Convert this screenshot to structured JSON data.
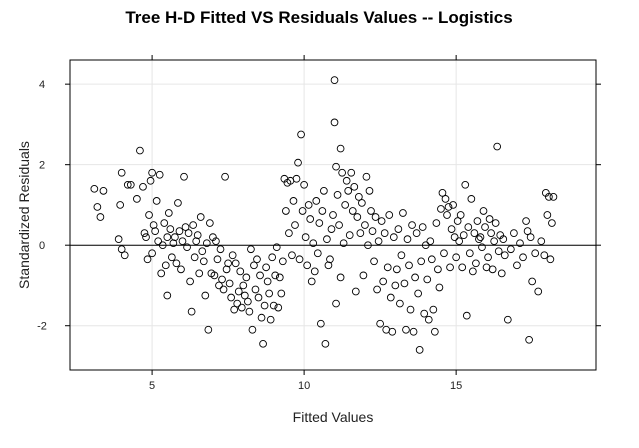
{
  "chart_data": {
    "type": "scatter",
    "title": "Tree H-D Fitted VS Residuals Values -- Logistics",
    "xlabel": "Fitted Values",
    "ylabel": "Standardized Residuals",
    "xlim": [
      2.3,
      19.6
    ],
    "ylim": [
      -3.1,
      4.6
    ],
    "xticks": [
      5,
      10,
      15
    ],
    "xtick_labels": [
      "5",
      "10",
      "15"
    ],
    "yticks": [
      -2,
      0,
      2,
      4
    ],
    "ytick_labels": [
      "-2",
      "0",
      "2",
      "4"
    ],
    "grid": true,
    "reference_line_y": 0,
    "marker": "open-circle",
    "points": [
      [
        3.1,
        1.4
      ],
      [
        3.2,
        0.95
      ],
      [
        3.3,
        0.7
      ],
      [
        3.4,
        1.35
      ],
      [
        3.9,
        0.15
      ],
      [
        4.0,
        -0.1
      ],
      [
        4.1,
        -0.25
      ],
      [
        3.95,
        1.0
      ],
      [
        4.0,
        1.8
      ],
      [
        4.2,
        1.5
      ],
      [
        4.3,
        1.5
      ],
      [
        4.5,
        1.15
      ],
      [
        4.6,
        2.35
      ],
      [
        4.7,
        1.45
      ],
      [
        4.75,
        0.3
      ],
      [
        4.8,
        0.2
      ],
      [
        4.85,
        -0.35
      ],
      [
        4.9,
        0.75
      ],
      [
        4.95,
        1.6
      ],
      [
        5.0,
        1.8
      ],
      [
        5.0,
        -0.2
      ],
      [
        5.05,
        0.5
      ],
      [
        5.1,
        0.35
      ],
      [
        5.15,
        1.1
      ],
      [
        5.2,
        0.1
      ],
      [
        5.25,
        1.75
      ],
      [
        5.3,
        -0.7
      ],
      [
        5.35,
        0.0
      ],
      [
        5.4,
        0.55
      ],
      [
        5.45,
        -0.5
      ],
      [
        5.5,
        0.2
      ],
      [
        5.5,
        -1.25
      ],
      [
        5.55,
        0.8
      ],
      [
        5.6,
        0.4
      ],
      [
        5.65,
        -0.3
      ],
      [
        5.7,
        0.05
      ],
      [
        5.75,
        0.2
      ],
      [
        5.8,
        -0.45
      ],
      [
        5.85,
        1.05
      ],
      [
        5.9,
        0.35
      ],
      [
        5.95,
        -0.6
      ],
      [
        6.0,
        0.1
      ],
      [
        6.05,
        1.7
      ],
      [
        6.1,
        0.45
      ],
      [
        6.15,
        -0.05
      ],
      [
        6.2,
        0.3
      ],
      [
        6.25,
        -0.9
      ],
      [
        6.3,
        -1.65
      ],
      [
        6.35,
        0.5
      ],
      [
        6.4,
        -0.3
      ],
      [
        6.45,
        0.1
      ],
      [
        6.5,
        0.25
      ],
      [
        6.55,
        -0.7
      ],
      [
        6.6,
        0.7
      ],
      [
        6.65,
        -0.15
      ],
      [
        6.7,
        -0.4
      ],
      [
        6.75,
        -1.25
      ],
      [
        6.8,
        0.05
      ],
      [
        6.85,
        -2.1
      ],
      [
        6.9,
        0.55
      ],
      [
        6.95,
        -0.7
      ],
      [
        7.0,
        0.2
      ],
      [
        7.05,
        -0.75
      ],
      [
        7.1,
        0.1
      ],
      [
        7.15,
        -0.35
      ],
      [
        7.2,
        -1.0
      ],
      [
        7.25,
        -0.1
      ],
      [
        7.3,
        -0.85
      ],
      [
        7.35,
        -1.1
      ],
      [
        7.4,
        1.7
      ],
      [
        7.45,
        -0.6
      ],
      [
        7.5,
        -0.45
      ],
      [
        7.55,
        -0.95
      ],
      [
        7.6,
        -1.3
      ],
      [
        7.65,
        -0.25
      ],
      [
        7.7,
        -1.6
      ],
      [
        7.75,
        -0.45
      ],
      [
        7.8,
        -1.45
      ],
      [
        7.85,
        -1.15
      ],
      [
        7.9,
        -0.65
      ],
      [
        7.95,
        -1.55
      ],
      [
        8.0,
        -1.0
      ],
      [
        8.05,
        -1.25
      ],
      [
        8.1,
        -0.8
      ],
      [
        8.15,
        -1.4
      ],
      [
        8.2,
        -1.65
      ],
      [
        8.25,
        -0.1
      ],
      [
        8.3,
        -2.1
      ],
      [
        8.35,
        -0.5
      ],
      [
        8.4,
        -1.1
      ],
      [
        8.45,
        -0.35
      ],
      [
        8.5,
        -1.3
      ],
      [
        8.55,
        -0.75
      ],
      [
        8.6,
        -1.8
      ],
      [
        8.65,
        -2.45
      ],
      [
        8.7,
        -1.5
      ],
      [
        8.75,
        -0.55
      ],
      [
        8.8,
        -0.9
      ],
      [
        8.85,
        -1.2
      ],
      [
        8.9,
        -1.85
      ],
      [
        8.95,
        -0.3
      ],
      [
        9.0,
        -1.5
      ],
      [
        9.05,
        -0.75
      ],
      [
        9.1,
        -0.05
      ],
      [
        9.15,
        -1.55
      ],
      [
        9.2,
        -0.8
      ],
      [
        9.25,
        -1.2
      ],
      [
        9.3,
        -0.4
      ],
      [
        9.35,
        1.65
      ],
      [
        9.4,
        0.85
      ],
      [
        9.45,
        1.55
      ],
      [
        9.5,
        0.3
      ],
      [
        9.55,
        1.6
      ],
      [
        9.6,
        -0.25
      ],
      [
        9.65,
        1.1
      ],
      [
        9.7,
        0.5
      ],
      [
        9.75,
        1.65
      ],
      [
        9.8,
        2.05
      ],
      [
        9.85,
        -0.35
      ],
      [
        9.9,
        2.75
      ],
      [
        9.95,
        0.85
      ],
      [
        10.0,
        1.5
      ],
      [
        10.05,
        0.2
      ],
      [
        10.1,
        -0.5
      ],
      [
        10.15,
        1.0
      ],
      [
        10.2,
        0.65
      ],
      [
        10.25,
        -0.9
      ],
      [
        10.3,
        0.05
      ],
      [
        10.35,
        -0.65
      ],
      [
        10.4,
        1.1
      ],
      [
        10.45,
        -0.2
      ],
      [
        10.5,
        0.55
      ],
      [
        10.55,
        -1.95
      ],
      [
        10.6,
        0.85
      ],
      [
        10.65,
        1.35
      ],
      [
        10.7,
        -2.45
      ],
      [
        10.75,
        0.15
      ],
      [
        10.8,
        -0.5
      ],
      [
        10.85,
        -0.35
      ],
      [
        10.9,
        0.4
      ],
      [
        10.95,
        0.75
      ],
      [
        11.0,
        4.1
      ],
      [
        11.0,
        3.05
      ],
      [
        11.05,
        1.95
      ],
      [
        11.05,
        -1.45
      ],
      [
        11.1,
        1.25
      ],
      [
        11.15,
        0.5
      ],
      [
        11.2,
        2.4
      ],
      [
        11.2,
        -0.8
      ],
      [
        11.25,
        1.8
      ],
      [
        11.3,
        0.05
      ],
      [
        11.35,
        1.0
      ],
      [
        11.4,
        1.6
      ],
      [
        11.45,
        1.35
      ],
      [
        11.5,
        0.25
      ],
      [
        11.55,
        1.8
      ],
      [
        11.6,
        0.85
      ],
      [
        11.65,
        1.45
      ],
      [
        11.7,
        -1.15
      ],
      [
        11.75,
        0.7
      ],
      [
        11.8,
        1.2
      ],
      [
        11.85,
        0.3
      ],
      [
        11.9,
        1.05
      ],
      [
        11.95,
        -0.75
      ],
      [
        12.0,
        0.5
      ],
      [
        12.05,
        1.7
      ],
      [
        12.1,
        0.0
      ],
      [
        12.15,
        1.35
      ],
      [
        12.2,
        0.85
      ],
      [
        12.25,
        0.35
      ],
      [
        12.3,
        -0.4
      ],
      [
        12.35,
        0.7
      ],
      [
        12.4,
        -1.1
      ],
      [
        12.45,
        0.1
      ],
      [
        12.5,
        -1.95
      ],
      [
        12.55,
        0.6
      ],
      [
        12.6,
        -0.9
      ],
      [
        12.65,
        0.3
      ],
      [
        12.7,
        -2.1
      ],
      [
        12.75,
        -0.55
      ],
      [
        12.8,
        0.75
      ],
      [
        12.85,
        -1.3
      ],
      [
        12.9,
        -2.15
      ],
      [
        12.95,
        0.2
      ],
      [
        13.0,
        -1.0
      ],
      [
        13.05,
        -0.6
      ],
      [
        13.1,
        0.4
      ],
      [
        13.15,
        -1.45
      ],
      [
        13.2,
        -0.25
      ],
      [
        13.25,
        0.8
      ],
      [
        13.3,
        -0.95
      ],
      [
        13.35,
        -2.1
      ],
      [
        13.4,
        0.15
      ],
      [
        13.45,
        -0.5
      ],
      [
        13.5,
        -1.6
      ],
      [
        13.55,
        0.5
      ],
      [
        13.6,
        -2.15
      ],
      [
        13.65,
        -0.8
      ],
      [
        13.7,
        0.3
      ],
      [
        13.75,
        -1.2
      ],
      [
        13.8,
        -2.6
      ],
      [
        13.85,
        -0.4
      ],
      [
        13.9,
        0.45
      ],
      [
        13.95,
        -1.7
      ],
      [
        14.0,
        0.0
      ],
      [
        14.05,
        -0.85
      ],
      [
        14.1,
        -1.85
      ],
      [
        14.15,
        0.1
      ],
      [
        14.2,
        -0.35
      ],
      [
        14.25,
        -1.6
      ],
      [
        14.3,
        -2.15
      ],
      [
        14.35,
        0.55
      ],
      [
        14.4,
        -0.6
      ],
      [
        14.45,
        -1.05
      ],
      [
        14.5,
        0.9
      ],
      [
        14.55,
        1.3
      ],
      [
        14.6,
        -0.2
      ],
      [
        14.65,
        1.15
      ],
      [
        14.7,
        0.75
      ],
      [
        14.75,
        0.95
      ],
      [
        14.8,
        -0.55
      ],
      [
        14.85,
        0.4
      ],
      [
        14.9,
        1.0
      ],
      [
        14.95,
        0.2
      ],
      [
        15.0,
        -0.3
      ],
      [
        15.05,
        0.6
      ],
      [
        15.1,
        0.1
      ],
      [
        15.15,
        0.75
      ],
      [
        15.2,
        -0.55
      ],
      [
        15.25,
        0.25
      ],
      [
        15.3,
        1.5
      ],
      [
        15.35,
        -1.75
      ],
      [
        15.4,
        0.45
      ],
      [
        15.45,
        -0.2
      ],
      [
        15.5,
        1.15
      ],
      [
        15.55,
        -0.65
      ],
      [
        15.6,
        0.3
      ],
      [
        15.65,
        -0.45
      ],
      [
        15.7,
        0.6
      ],
      [
        15.75,
        0.15
      ],
      [
        15.8,
        0.2
      ],
      [
        15.85,
        -0.05
      ],
      [
        15.9,
        0.85
      ],
      [
        15.95,
        0.45
      ],
      [
        16.0,
        -0.55
      ],
      [
        16.05,
        -0.3
      ],
      [
        16.1,
        0.65
      ],
      [
        16.15,
        0.3
      ],
      [
        16.2,
        -0.6
      ],
      [
        16.25,
        0.1
      ],
      [
        16.3,
        0.55
      ],
      [
        16.35,
        2.45
      ],
      [
        16.4,
        -0.15
      ],
      [
        16.45,
        0.25
      ],
      [
        16.5,
        -0.7
      ],
      [
        16.55,
        0.15
      ],
      [
        16.6,
        -0.25
      ],
      [
        16.7,
        -1.85
      ],
      [
        16.8,
        -0.1
      ],
      [
        16.9,
        0.3
      ],
      [
        17.0,
        -0.5
      ],
      [
        17.1,
        0.05
      ],
      [
        17.2,
        -0.3
      ],
      [
        17.3,
        0.6
      ],
      [
        17.35,
        0.35
      ],
      [
        17.4,
        -2.35
      ],
      [
        17.45,
        0.2
      ],
      [
        17.5,
        -0.9
      ],
      [
        17.6,
        -0.2
      ],
      [
        17.7,
        -1.15
      ],
      [
        17.8,
        0.1
      ],
      [
        17.9,
        -0.25
      ],
      [
        17.95,
        1.3
      ],
      [
        18.0,
        0.75
      ],
      [
        18.05,
        1.2
      ],
      [
        18.1,
        -0.35
      ],
      [
        18.15,
        0.55
      ],
      [
        18.2,
        1.2
      ]
    ]
  }
}
